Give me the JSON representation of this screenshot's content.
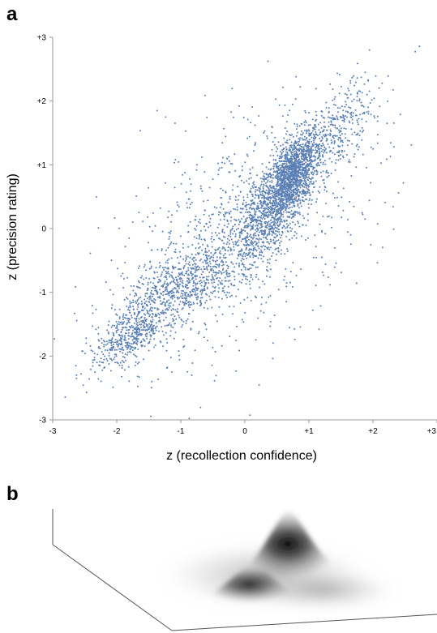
{
  "panels": {
    "a_label": "a",
    "b_label": "b"
  },
  "chart_data": [
    {
      "type": "scatter",
      "title": "",
      "xlabel": "z (recollection confidence)",
      "ylabel": "z (precision rating)",
      "xlim": [
        -3,
        3
      ],
      "ylim": [
        -3,
        3
      ],
      "x_ticks": [
        "-3",
        "-2",
        "-1",
        "0",
        "+1",
        "+2",
        "+3"
      ],
      "y_ticks": [
        "-3",
        "-2",
        "-1",
        "0",
        "+1",
        "+2",
        "+3"
      ],
      "grid": false,
      "point_color": "#5a7fb5",
      "clusters": [
        {
          "center": [
            0.75,
            0.85
          ],
          "spread": [
            0.22,
            0.35
          ],
          "count": 1400
        },
        {
          "center": [
            0.3,
            0.2
          ],
          "spread": [
            0.35,
            0.45
          ],
          "count": 900
        },
        {
          "center": [
            -1.0,
            -0.9
          ],
          "spread": [
            0.45,
            0.35
          ],
          "count": 700
        },
        {
          "center": [
            -1.8,
            -1.7
          ],
          "spread": [
            0.3,
            0.25
          ],
          "count": 450
        },
        {
          "center": [
            1.5,
            1.6
          ],
          "spread": [
            0.25,
            0.35
          ],
          "count": 250
        },
        {
          "center": [
            0.0,
            0.0
          ],
          "spread": [
            1.1,
            1.1
          ],
          "count": 900
        }
      ]
    },
    {
      "type": "heatmap",
      "title": "",
      "xlabel": "",
      "ylabel": "",
      "peaks": [
        {
          "center": [
            0.8,
            0.9
          ],
          "height": 1.0
        },
        {
          "center": [
            -0.9,
            -0.9
          ],
          "height": 0.65
        }
      ]
    }
  ]
}
